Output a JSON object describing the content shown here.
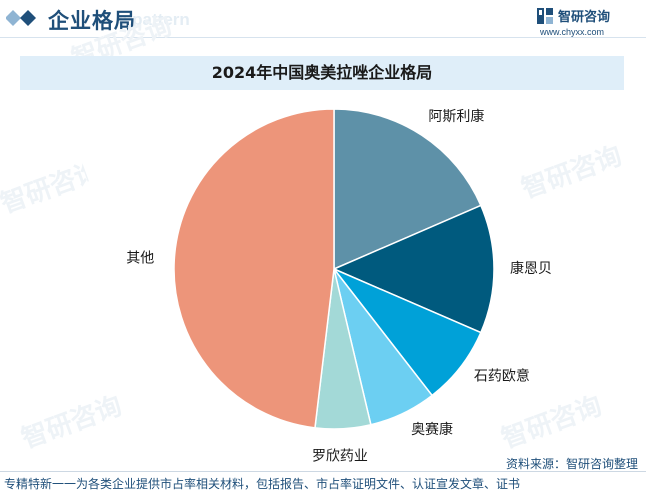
{
  "header": {
    "title": "企业格局",
    "ghost_text": "e pattern"
  },
  "brand": {
    "name": "智研咨询",
    "url": "www.chyxx.com"
  },
  "watermark": {
    "text": "智研咨询"
  },
  "chart_data": {
    "type": "pie",
    "title": "2024年中国奥美拉唑企业格局",
    "start_angle_deg": 0,
    "direction": "clockwise",
    "slices": [
      {
        "label": "阿斯利康",
        "value": 18.5,
        "color": "#5e91a8"
      },
      {
        "label": "康恩贝",
        "value": 13.0,
        "color": "#005a7e"
      },
      {
        "label": "石药欧意",
        "value": 8.0,
        "color": "#00a1d8"
      },
      {
        "label": "奥赛康",
        "value": 6.8,
        "color": "#6ccff2"
      },
      {
        "label": "罗欣药业",
        "value": 5.6,
        "color": "#a3d9d7"
      },
      {
        "label": "其他",
        "value": 48.1,
        "color": "#ed957a"
      }
    ]
  },
  "footer": {
    "source": "资料来源：智研咨询整理",
    "tagline": "专精特新一一为各类企业提供市占率相关材料，包括报告、市占率证明文件、认证宣发文章、证书"
  }
}
